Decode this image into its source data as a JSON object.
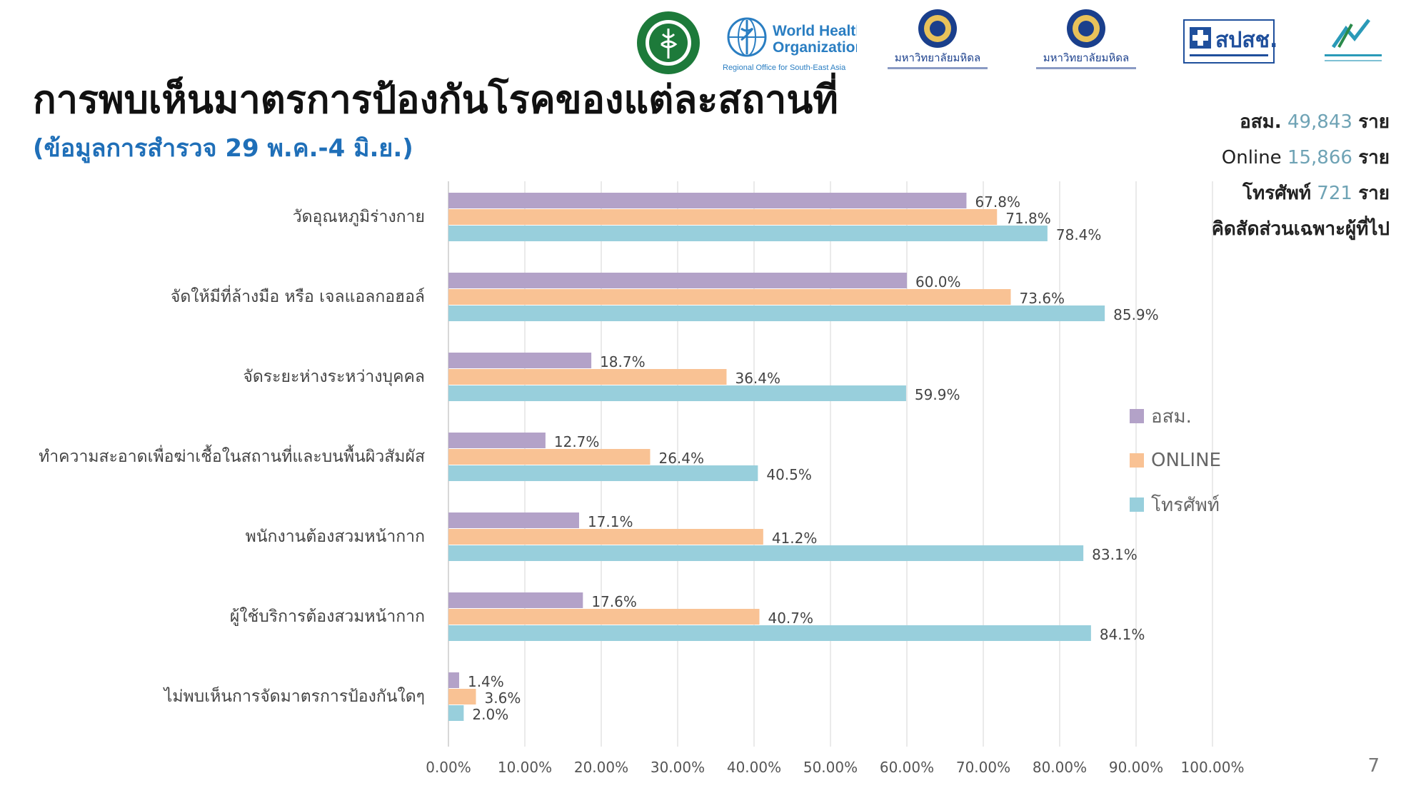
{
  "title": "การพบเห็นมาตรการป้องกันโรคของแต่ละสถานที่",
  "subtitle": "(ข้อมูลการสำรวจ 29 พ.ค.-4 มิ.ย.)",
  "stats": [
    {
      "label": "อสม.",
      "value": "49,843",
      "unit": "ราย"
    },
    {
      "label": "Online",
      "value": "15,866",
      "unit": "ราย"
    },
    {
      "label": "โทรศัพท์",
      "value": "721",
      "unit": "ราย"
    }
  ],
  "stats_note": "คิดสัดส่วนเฉพาะผู้ที่ไป",
  "logos": {
    "who_line1": "World Health",
    "who_line2": "Organization",
    "who_sub": "Regional Office for South-East Asia",
    "mahidol1": "มหาวิทยาลัยมหิดล",
    "mahidol2": "มหาวิทยาลัยมหิดล",
    "nhso": "สปสช."
  },
  "page_number": "7",
  "colors": {
    "osm": "#b3a2c8",
    "online": "#f9c294",
    "phone": "#98cfdc",
    "grid": "#e3e3e3"
  },
  "chart_data": {
    "type": "bar",
    "orientation": "horizontal",
    "categories": [
      "วัดอุณหภูมิร่างกาย",
      "จัดให้มีที่ล้างมือ หรือ เจลแอลกอฮอล์",
      "จัดระยะห่างระหว่างบุคคล",
      "ทำความสะอาดเพื่อฆ่าเชื้อในสถานที่และบนพื้นผิวสัมผัส",
      "พนักงานต้องสวมหน้ากาก",
      "ผู้ใช้บริการต้องสวมหน้ากาก",
      "ไม่พบเห็นการจัดมาตรการป้องกันใดๆ"
    ],
    "series": [
      {
        "name": "อสม.",
        "values": [
          67.8,
          60.0,
          18.7,
          12.7,
          17.1,
          17.6,
          1.4
        ]
      },
      {
        "name": "ONLINE",
        "values": [
          71.8,
          73.6,
          36.4,
          26.4,
          41.2,
          40.7,
          3.6
        ]
      },
      {
        "name": "โทรศัพท์",
        "values": [
          78.4,
          85.9,
          59.9,
          40.5,
          83.1,
          84.1,
          2.0
        ]
      }
    ],
    "xlim": [
      0,
      100
    ],
    "xticks": [
      "0.00%",
      "10.00%",
      "20.00%",
      "30.00%",
      "40.00%",
      "50.00%",
      "60.00%",
      "70.00%",
      "80.00%",
      "90.00%",
      "100.00%"
    ],
    "grid": true,
    "legend_position": "right"
  }
}
